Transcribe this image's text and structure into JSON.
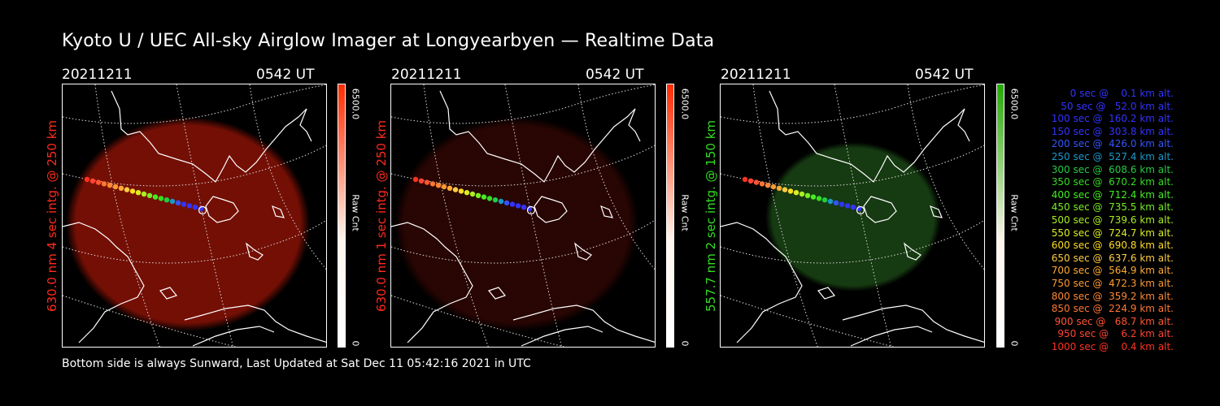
{
  "title": "Kyoto U / UEC All-sky Airglow Imager at Longyearbyen — Realtime Data",
  "footer": "Bottom side is always Sunward, Last Updated at Sat Dec 11 05:42:16 2021 in UTC",
  "panels": [
    {
      "date": "20211211",
      "time": "0542 UT",
      "side_label": "630.0 nm 4 sec intg. @ 250 km",
      "side_label_color": "#ff2a1a",
      "colorbar_max": "6500.0",
      "colorbar_unit": "Raw Cnt",
      "colorbar_min": "0",
      "colorbar_color": "#ff2a00",
      "glow_color": "#7a1005",
      "glow_intensity": 0.95
    },
    {
      "date": "20211211",
      "time": "0542 UT",
      "side_label": "630.0 nm 1 sec intg. @ 250 km",
      "side_label_color": "#ff2a1a",
      "colorbar_max": "6500.0",
      "colorbar_unit": "Raw Cnt",
      "colorbar_min": "0",
      "colorbar_color": "#ff2a00",
      "glow_color": "#2c0603",
      "glow_intensity": 0.9
    },
    {
      "date": "20211211",
      "time": "0542 UT",
      "side_label": "557.7 nm 2 sec intg. @ 150 km",
      "side_label_color": "#33dd22",
      "colorbar_max": "6500.0",
      "colorbar_unit": "Raw Cnt",
      "colorbar_min": "0",
      "colorbar_color": "#22aa00",
      "glow_color": "#173d12",
      "glow_intensity": 0.95
    }
  ],
  "legend": [
    {
      "text": "   0 sec @    0.1 km alt.",
      "color": "#3333ff"
    },
    {
      "text": "  50 sec @   52.0 km alt.",
      "color": "#3333ff"
    },
    {
      "text": " 100 sec @  160.2 km alt.",
      "color": "#3333ff"
    },
    {
      "text": " 150 sec @  303.8 km alt.",
      "color": "#3333ff"
    },
    {
      "text": " 200 sec @  426.0 km alt.",
      "color": "#3355ff"
    },
    {
      "text": " 250 sec @  527.4 km alt.",
      "color": "#1a99cc"
    },
    {
      "text": " 300 sec @  608.6 km alt.",
      "color": "#22cc44"
    },
    {
      "text": " 350 sec @  670.2 km alt.",
      "color": "#33dd22"
    },
    {
      "text": " 400 sec @  712.4 km alt.",
      "color": "#44ee22"
    },
    {
      "text": " 450 sec @  735.5 km alt.",
      "color": "#77ee22"
    },
    {
      "text": " 500 sec @  739.6 km alt.",
      "color": "#aaee22"
    },
    {
      "text": " 550 sec @  724.7 km alt.",
      "color": "#ddee22"
    },
    {
      "text": " 600 sec @  690.8 km alt.",
      "color": "#ffdd22"
    },
    {
      "text": " 650 sec @  637.6 km alt.",
      "color": "#ffcc44"
    },
    {
      "text": " 700 sec @  564.9 km alt.",
      "color": "#ffaa33"
    },
    {
      "text": " 750 sec @  472.3 km alt.",
      "color": "#ff9933"
    },
    {
      "text": " 800 sec @  359.2 km alt.",
      "color": "#ff8833"
    },
    {
      "text": " 850 sec @  224.9 km alt.",
      "color": "#ff7733"
    },
    {
      "text": " 900 sec @   68.7 km alt.",
      "color": "#ff5533"
    },
    {
      "text": " 950 sec @    6.2 km alt.",
      "color": "#ff4433"
    },
    {
      "text": "1000 sec @    0.4 km alt.",
      "color": "#ff3322"
    }
  ]
}
